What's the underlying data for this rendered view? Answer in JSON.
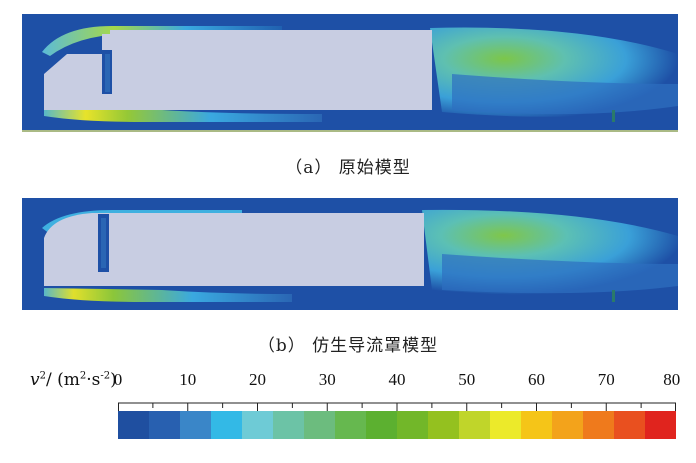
{
  "captions": {
    "a": "（a） 原始模型",
    "b": "（b） 仿生导流罩模型"
  },
  "legend": {
    "label_v": "v",
    "label_sup1": "2",
    "label_mid": "/ (m",
    "label_sup2": "2",
    "label_mid2": "·s",
    "label_sup3": "-2",
    "label_end": ")",
    "ticks": [
      "0",
      "10",
      "20",
      "30",
      "40",
      "50",
      "60",
      "70",
      "80"
    ],
    "bins": [
      "#1f4fa0",
      "#2860b0",
      "#3a86c8",
      "#33b9e6",
      "#6ecbd6",
      "#6cc3a6",
      "#6cbc7e",
      "#66b84f",
      "#5cb030",
      "#72b729",
      "#94c11f",
      "#c0d52a",
      "#ecea2a",
      "#f5c518",
      "#f3a31b",
      "#ef7a1c",
      "#e9501f",
      "#e0241e"
    ]
  },
  "colors": {
    "background_field": "#1e50a6",
    "truck_body": "#c8cde2"
  }
}
